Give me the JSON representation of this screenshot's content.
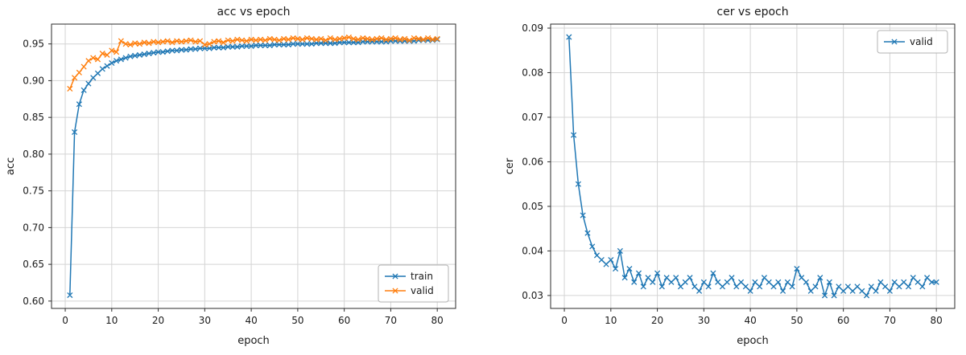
{
  "page": {
    "background": "#ffffff"
  },
  "chart_data": [
    {
      "type": "line",
      "title": "acc vs epoch",
      "xlabel": "epoch",
      "ylabel": "acc",
      "xlim": [
        -2.95,
        83.95
      ],
      "ylim": [
        0.59,
        0.977
      ],
      "xticks": [
        0,
        10,
        20,
        30,
        40,
        50,
        60,
        70,
        80
      ],
      "yticks": [
        0.6,
        0.65,
        0.7,
        0.75,
        0.8,
        0.85,
        0.9,
        0.95
      ],
      "ytick_decimals": 2,
      "grid": true,
      "legend_loc": "lower right",
      "marker": "x",
      "x": [
        1,
        2,
        3,
        4,
        5,
        6,
        7,
        8,
        9,
        10,
        11,
        12,
        13,
        14,
        15,
        16,
        17,
        18,
        19,
        20,
        21,
        22,
        23,
        24,
        25,
        26,
        27,
        28,
        29,
        30,
        31,
        32,
        33,
        34,
        35,
        36,
        37,
        38,
        39,
        40,
        41,
        42,
        43,
        44,
        45,
        46,
        47,
        48,
        49,
        50,
        51,
        52,
        53,
        54,
        55,
        56,
        57,
        58,
        59,
        60,
        61,
        62,
        63,
        64,
        65,
        66,
        67,
        68,
        69,
        70,
        71,
        72,
        73,
        74,
        75,
        76,
        77,
        78,
        79,
        80
      ],
      "series": [
        {
          "name": "train",
          "color": "#1f77b4",
          "values": [
            0.608,
            0.83,
            0.868,
            0.887,
            0.896,
            0.904,
            0.91,
            0.916,
            0.92,
            0.924,
            0.927,
            0.929,
            0.931,
            0.933,
            0.934,
            0.935,
            0.936,
            0.937,
            0.938,
            0.939,
            0.939,
            0.94,
            0.941,
            0.941,
            0.942,
            0.942,
            0.943,
            0.943,
            0.944,
            0.944,
            0.944,
            0.945,
            0.945,
            0.945,
            0.946,
            0.946,
            0.946,
            0.947,
            0.947,
            0.947,
            0.948,
            0.948,
            0.948,
            0.948,
            0.949,
            0.949,
            0.949,
            0.949,
            0.95,
            0.95,
            0.95,
            0.95,
            0.95,
            0.951,
            0.951,
            0.951,
            0.951,
            0.951,
            0.952,
            0.952,
            0.952,
            0.952,
            0.952,
            0.953,
            0.953,
            0.953,
            0.953,
            0.953,
            0.953,
            0.954,
            0.954,
            0.954,
            0.954,
            0.954,
            0.954,
            0.955,
            0.955,
            0.955,
            0.955,
            0.956
          ]
        },
        {
          "name": "valid",
          "color": "#ff7f0e",
          "values": [
            0.889,
            0.904,
            0.911,
            0.919,
            0.927,
            0.931,
            0.929,
            0.937,
            0.935,
            0.941,
            0.939,
            0.954,
            0.95,
            0.949,
            0.951,
            0.95,
            0.952,
            0.951,
            0.953,
            0.952,
            0.953,
            0.954,
            0.952,
            0.954,
            0.953,
            0.954,
            0.955,
            0.953,
            0.954,
            0.949,
            0.95,
            0.953,
            0.954,
            0.952,
            0.955,
            0.954,
            0.956,
            0.955,
            0.954,
            0.956,
            0.955,
            0.956,
            0.955,
            0.957,
            0.956,
            0.955,
            0.957,
            0.956,
            0.958,
            0.957,
            0.956,
            0.958,
            0.957,
            0.956,
            0.957,
            0.955,
            0.958,
            0.956,
            0.957,
            0.958,
            0.959,
            0.957,
            0.956,
            0.958,
            0.957,
            0.956,
            0.957,
            0.958,
            0.956,
            0.957,
            0.958,
            0.956,
            0.957,
            0.955,
            0.958,
            0.957,
            0.956,
            0.958,
            0.956,
            0.957
          ]
        }
      ]
    },
    {
      "type": "line",
      "title": "cer vs epoch",
      "xlabel": "epoch",
      "ylabel": "cer",
      "xlim": [
        -2.95,
        83.95
      ],
      "ylim": [
        0.0271,
        0.0909
      ],
      "xticks": [
        0,
        10,
        20,
        30,
        40,
        50,
        60,
        70,
        80
      ],
      "yticks": [
        0.03,
        0.04,
        0.05,
        0.06,
        0.07,
        0.08,
        0.09
      ],
      "ytick_decimals": 2,
      "grid": true,
      "legend_loc": "upper right",
      "marker": "x",
      "x": [
        1,
        2,
        3,
        4,
        5,
        6,
        7,
        8,
        9,
        10,
        11,
        12,
        13,
        14,
        15,
        16,
        17,
        18,
        19,
        20,
        21,
        22,
        23,
        24,
        25,
        26,
        27,
        28,
        29,
        30,
        31,
        32,
        33,
        34,
        35,
        36,
        37,
        38,
        39,
        40,
        41,
        42,
        43,
        44,
        45,
        46,
        47,
        48,
        49,
        50,
        51,
        52,
        53,
        54,
        55,
        56,
        57,
        58,
        59,
        60,
        61,
        62,
        63,
        64,
        65,
        66,
        67,
        68,
        69,
        70,
        71,
        72,
        73,
        74,
        75,
        76,
        77,
        78,
        79,
        80
      ],
      "series": [
        {
          "name": "valid",
          "color": "#1f77b4",
          "values": [
            0.088,
            0.066,
            0.055,
            0.048,
            0.044,
            0.041,
            0.039,
            0.038,
            0.037,
            0.038,
            0.036,
            0.04,
            0.034,
            0.036,
            0.033,
            0.035,
            0.032,
            0.034,
            0.033,
            0.035,
            0.032,
            0.034,
            0.033,
            0.034,
            0.032,
            0.033,
            0.034,
            0.032,
            0.031,
            0.033,
            0.032,
            0.035,
            0.033,
            0.032,
            0.033,
            0.034,
            0.032,
            0.033,
            0.032,
            0.031,
            0.033,
            0.032,
            0.034,
            0.033,
            0.032,
            0.033,
            0.031,
            0.033,
            0.032,
            0.036,
            0.034,
            0.033,
            0.031,
            0.032,
            0.034,
            0.03,
            0.033,
            0.03,
            0.032,
            0.031,
            0.032,
            0.031,
            0.032,
            0.031,
            0.03,
            0.032,
            0.031,
            0.033,
            0.032,
            0.031,
            0.033,
            0.032,
            0.033,
            0.032,
            0.034,
            0.033,
            0.032,
            0.034,
            0.033,
            0.033
          ]
        }
      ]
    }
  ]
}
